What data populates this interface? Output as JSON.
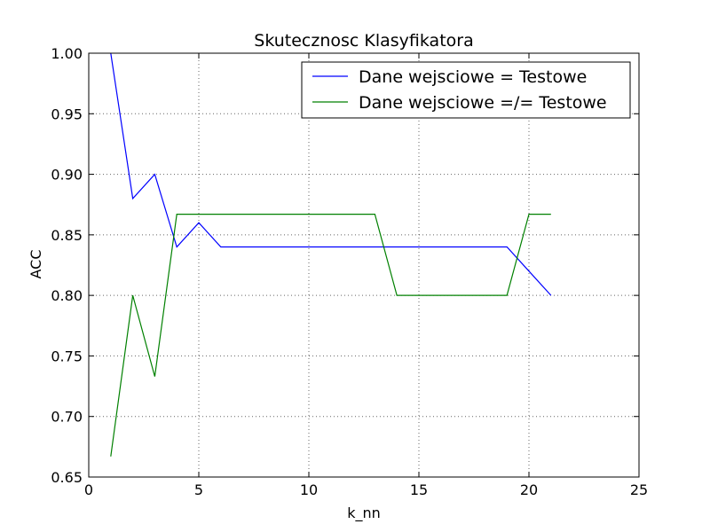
{
  "chart_data": {
    "type": "line",
    "title": "Skutecznosc Klasyfikatora",
    "xlabel": "k_nn",
    "ylabel": "ACC",
    "xlim": [
      0,
      25
    ],
    "ylim": [
      0.65,
      1.0
    ],
    "xticks": [
      0,
      5,
      10,
      15,
      20,
      25
    ],
    "yticks": [
      0.65,
      0.7,
      0.75,
      0.8,
      0.85,
      0.9,
      0.95,
      1.0
    ],
    "xtick_labels": [
      "0",
      "5",
      "10",
      "15",
      "20",
      "25"
    ],
    "ytick_labels": [
      "0.65",
      "0.70",
      "0.75",
      "0.80",
      "0.85",
      "0.90",
      "0.95",
      "1.00"
    ],
    "grid": true,
    "legend_position": "top-right",
    "x": [
      1,
      2,
      3,
      4,
      5,
      6,
      7,
      8,
      9,
      10,
      11,
      12,
      13,
      14,
      15,
      16,
      17,
      18,
      19,
      20,
      21
    ],
    "series": [
      {
        "name": "Dane wejsciowe = Testowe",
        "color": "#0000ff",
        "values": [
          1.0,
          0.88,
          0.9,
          0.84,
          0.86,
          0.84,
          0.84,
          0.84,
          0.84,
          0.84,
          0.84,
          0.84,
          0.84,
          0.84,
          0.84,
          0.84,
          0.84,
          0.84,
          0.84,
          0.82,
          0.8
        ]
      },
      {
        "name": "Dane wejsciowe =/= Testowe",
        "color": "#008000",
        "values": [
          0.667,
          0.8,
          0.733,
          0.867,
          0.867,
          0.867,
          0.867,
          0.867,
          0.867,
          0.867,
          0.867,
          0.867,
          0.867,
          0.8,
          0.8,
          0.8,
          0.8,
          0.8,
          0.8,
          0.867,
          0.867
        ]
      }
    ]
  }
}
